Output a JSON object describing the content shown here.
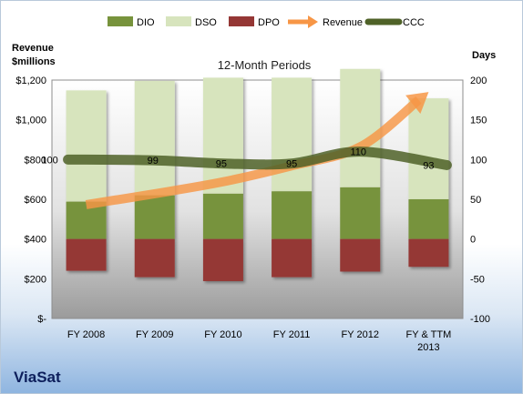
{
  "chart_data": {
    "type": "bar",
    "title": "12-Month Periods",
    "categories": [
      "FY 2008",
      "FY 2009",
      "FY 2010",
      "FY 2011",
      "FY 2012",
      "FY & TTM 2013"
    ],
    "left_axis": {
      "label_line1": "Revenue",
      "label_line2": "$millions",
      "range": [
        0,
        1200
      ],
      "ticks": [
        0,
        200,
        400,
        600,
        800,
        1000,
        1200
      ],
      "tick_labels": [
        "$-",
        "$200",
        "$400",
        "$600",
        "$800",
        "$1,000",
        "$1,200"
      ]
    },
    "right_axis": {
      "label": "Days",
      "range": [
        -100,
        200
      ],
      "ticks": [
        -100,
        -50,
        0,
        50,
        100,
        150,
        200
      ],
      "tick_labels": [
        "-100",
        "-50",
        "0",
        "50",
        "100",
        "150",
        "200"
      ]
    },
    "series": [
      {
        "name": "DIO",
        "axis": "right",
        "color": "#77933c",
        "values": [
          47,
          55,
          57,
          60,
          65,
          50
        ]
      },
      {
        "name": "DSO",
        "axis": "right",
        "color": "#d7e4bd",
        "values": [
          140,
          144,
          146,
          143,
          149,
          127
        ]
      },
      {
        "name": "DPO",
        "axis": "right",
        "color": "#953735",
        "values": [
          -40,
          -48,
          -53,
          -48,
          -41,
          -35
        ]
      },
      {
        "name": "Revenue",
        "axis": "left",
        "color": "#f79646",
        "values": [
          573,
          628,
          688,
          768,
          864,
          1140
        ]
      },
      {
        "name": "CCC",
        "axis": "right",
        "color": "#4f6228",
        "values": [
          100,
          99,
          95,
          95,
          110,
          93
        ]
      }
    ],
    "ccc_labels": [
      "100",
      "99",
      "95",
      "95",
      "110",
      "93"
    ],
    "legend_position": "top",
    "grid": false
  },
  "company_label": "ViaSat"
}
